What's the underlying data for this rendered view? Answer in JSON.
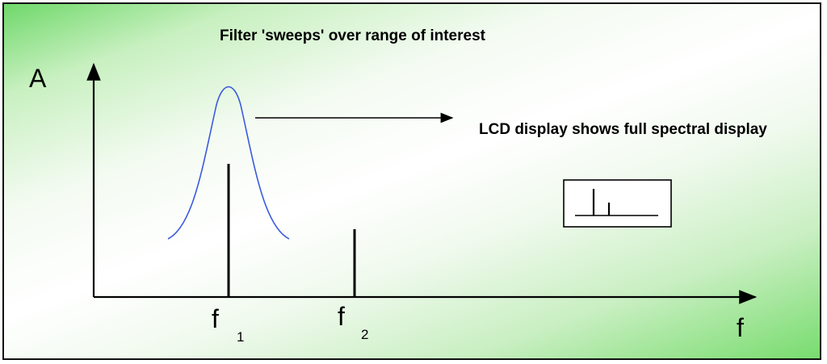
{
  "diagram": {
    "title": "Filter 'sweeps' over range of interest",
    "display_note": "LCD display shows full spectral display",
    "y_axis_label": "A",
    "x_axis_label": "f",
    "peaks": [
      {
        "label": "f",
        "subscript": "1"
      },
      {
        "label": "f",
        "subscript": "2"
      }
    ],
    "colors": {
      "filter_curve": "#3a5ae0",
      "lines": "#000000",
      "background_accent": "#6fd86a"
    }
  }
}
